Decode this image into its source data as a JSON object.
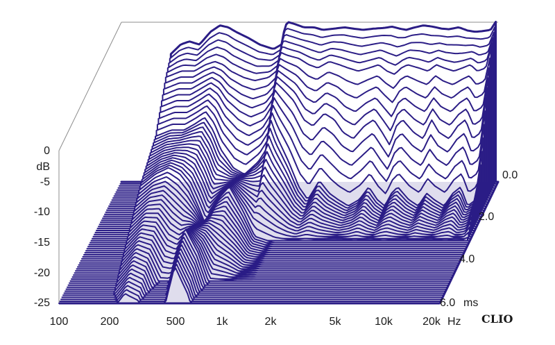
{
  "chart_data": {
    "type": "waterfall",
    "title": "",
    "brand": "CLIO",
    "colors": {
      "trace": "#2b1d86",
      "fill": "#ffffff",
      "frame": "#8c8c8c"
    },
    "x_axis": {
      "scale": "log",
      "range": [
        100,
        20000
      ],
      "unit": "Hz",
      "ticks": [
        {
          "value": 100,
          "label": "100"
        },
        {
          "value": 200,
          "label": "200"
        },
        {
          "value": 500,
          "label": "500"
        },
        {
          "value": 1000,
          "label": "1k"
        },
        {
          "value": 2000,
          "label": "2k"
        },
        {
          "value": 5000,
          "label": "5k"
        },
        {
          "value": 10000,
          "label": "10k"
        },
        {
          "value": 20000,
          "label": "20k"
        }
      ]
    },
    "y_axis": {
      "unit": "dB",
      "range": [
        -25,
        0
      ],
      "ticks": [
        {
          "value": 0,
          "label": "0"
        },
        {
          "value": -5,
          "label": "-5"
        },
        {
          "value": -10,
          "label": "-10"
        },
        {
          "value": -15,
          "label": "-15"
        },
        {
          "value": -20,
          "label": "-20"
        },
        {
          "value": -25,
          "label": "-25"
        }
      ]
    },
    "z_axis": {
      "unit": "ms",
      "range": [
        0,
        6
      ],
      "ticks": [
        {
          "value": 0,
          "label": "0.0"
        },
        {
          "value": 2,
          "label": "2.0"
        },
        {
          "value": 4,
          "label": "4.0"
        },
        {
          "value": 6,
          "label": "6.0"
        }
      ]
    },
    "series": [
      {
        "time_ms": 0,
        "frequency_hz": [
          200,
          230,
          260,
          300,
          350,
          400,
          450,
          500,
          600,
          700,
          850,
          950,
          1000,
          1050,
          1150,
          1300,
          1500,
          1700,
          2000,
          2300,
          2600,
          3000,
          3500,
          4000,
          4500,
          5000,
          5500,
          6000,
          7000,
          8000,
          9000,
          10000,
          11500,
          13000,
          14500,
          16000,
          18000,
          19500,
          20000
        ],
        "level_db": [
          -5,
          -3.5,
          -3,
          -3.5,
          -1.5,
          -0.5,
          -0.8,
          -1.5,
          -2.5,
          -3.5,
          -4.2,
          -3.5,
          -0.5,
          0,
          -0.3,
          -0.8,
          -0.8,
          -1.2,
          -1.0,
          -0.8,
          -1.0,
          -1.2,
          -1.0,
          -0.9,
          -0.7,
          -1.0,
          -1.2,
          -0.9,
          -0.5,
          -0.7,
          -1.0,
          -1.1,
          -0.8,
          -1.3,
          -1.5,
          -1.4,
          -1.2,
          0.2,
          0.2
        ]
      },
      {
        "time_ms": 0.5,
        "frequency_hz": [
          200,
          250,
          300,
          350,
          400,
          450,
          500,
          600,
          700,
          850,
          950,
          1000,
          1100,
          1300,
          1500,
          1700,
          2000,
          2300,
          2600,
          3000,
          3500,
          4000,
          4500,
          5000,
          5500,
          6000,
          7000,
          8000,
          9000,
          10000,
          11500,
          13000,
          14500,
          16000,
          18000,
          20000
        ],
        "level_db": [
          -7,
          -6,
          -6,
          -5,
          -4.5,
          -5,
          -6,
          -7,
          -7.5,
          -7,
          -6,
          -3,
          -3.5,
          -4,
          -5,
          -5.5,
          -4.5,
          -5,
          -5.5,
          -6,
          -5.5,
          -5,
          -6,
          -6.5,
          -5.5,
          -5,
          -5.5,
          -6,
          -5,
          -5.5,
          -6,
          -5.5,
          -5,
          -6,
          -5.5,
          -1
        ]
      },
      {
        "time_ms": 1.0,
        "frequency_hz": [
          200,
          250,
          300,
          350,
          400,
          450,
          500,
          600,
          700,
          850,
          950,
          1000,
          1100,
          1300,
          1500,
          1700,
          2000,
          2300,
          2600,
          3000,
          3500,
          4000,
          4500,
          5000,
          5500,
          6000,
          7000,
          8000,
          9000,
          10000,
          11500,
          13000,
          14500,
          16000,
          18000,
          20000
        ],
        "level_db": [
          -10,
          -9,
          -9,
          -8,
          -7,
          -8,
          -10,
          -12,
          -13,
          -12,
          -10,
          -6,
          -7,
          -9,
          -12,
          -13,
          -11,
          -12,
          -14,
          -15,
          -13,
          -12,
          -14,
          -16,
          -13,
          -12,
          -14,
          -15,
          -12,
          -14,
          -15,
          -13,
          -12,
          -15,
          -14,
          -6
        ]
      },
      {
        "time_ms": 1.5,
        "frequency_hz": [
          200,
          250,
          300,
          350,
          400,
          450,
          500,
          600,
          700,
          850,
          950,
          1000,
          1100,
          1300,
          1500,
          1700,
          2000,
          2300,
          2600,
          3000,
          3500,
          4000,
          4500,
          5000,
          5500,
          6000,
          7000,
          8000,
          9000,
          10000,
          11500,
          13000,
          14500,
          16000,
          18000,
          20000
        ],
        "level_db": [
          -13,
          -12,
          -12,
          -11,
          -10,
          -12,
          -15,
          -18,
          -19,
          -17,
          -15,
          -10,
          -13,
          -17,
          -21,
          -23,
          -20,
          -22,
          -23,
          -24,
          -23,
          -21,
          -23,
          -24,
          -22,
          -21,
          -23,
          -24,
          -22,
          -23,
          -24,
          -22,
          -21,
          -24,
          -23,
          -15
        ]
      },
      {
        "time_ms": 3.0,
        "frequency_hz": [
          200,
          250,
          300,
          350,
          400,
          450,
          500,
          600,
          700,
          850,
          1000,
          1300,
          2000
        ],
        "level_db": [
          -16,
          -14,
          -13,
          -14,
          -16,
          -19,
          -22,
          -18,
          -16,
          -20,
          -24,
          -25,
          -25
        ]
      },
      {
        "time_ms": 5.0,
        "frequency_hz": [
          200,
          250,
          300,
          350,
          400,
          450,
          500,
          600,
          700
        ],
        "level_db": [
          -23,
          -20,
          -21,
          -25,
          -25,
          -20,
          -16,
          -20,
          -25
        ]
      }
    ]
  }
}
